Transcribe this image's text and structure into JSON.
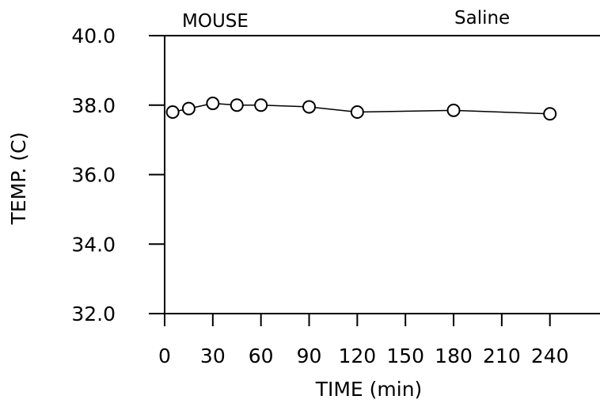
{
  "chart_data": {
    "type": "line",
    "title": "",
    "header_left": "MOUSE",
    "header_right": "Saline",
    "xlabel": "TIME (min)",
    "ylabel": "TEMP. (C)",
    "x_ticks": [
      "0",
      "30",
      "60",
      "90",
      "120",
      "150",
      "180",
      "210",
      "240"
    ],
    "y_ticks": [
      "32.0",
      "34.0",
      "36.0",
      "38.0",
      "40.0"
    ],
    "xlim": [
      0,
      255
    ],
    "ylim": [
      32.0,
      40.0
    ],
    "grid": false,
    "series": [
      {
        "marker": "open-circle",
        "color": "#000000",
        "x": [
          5,
          15,
          30,
          45,
          60,
          90,
          120,
          180,
          240
        ],
        "y": [
          37.8,
          37.9,
          38.05,
          38.0,
          38.0,
          37.95,
          37.8,
          37.85,
          37.75
        ]
      }
    ]
  }
}
